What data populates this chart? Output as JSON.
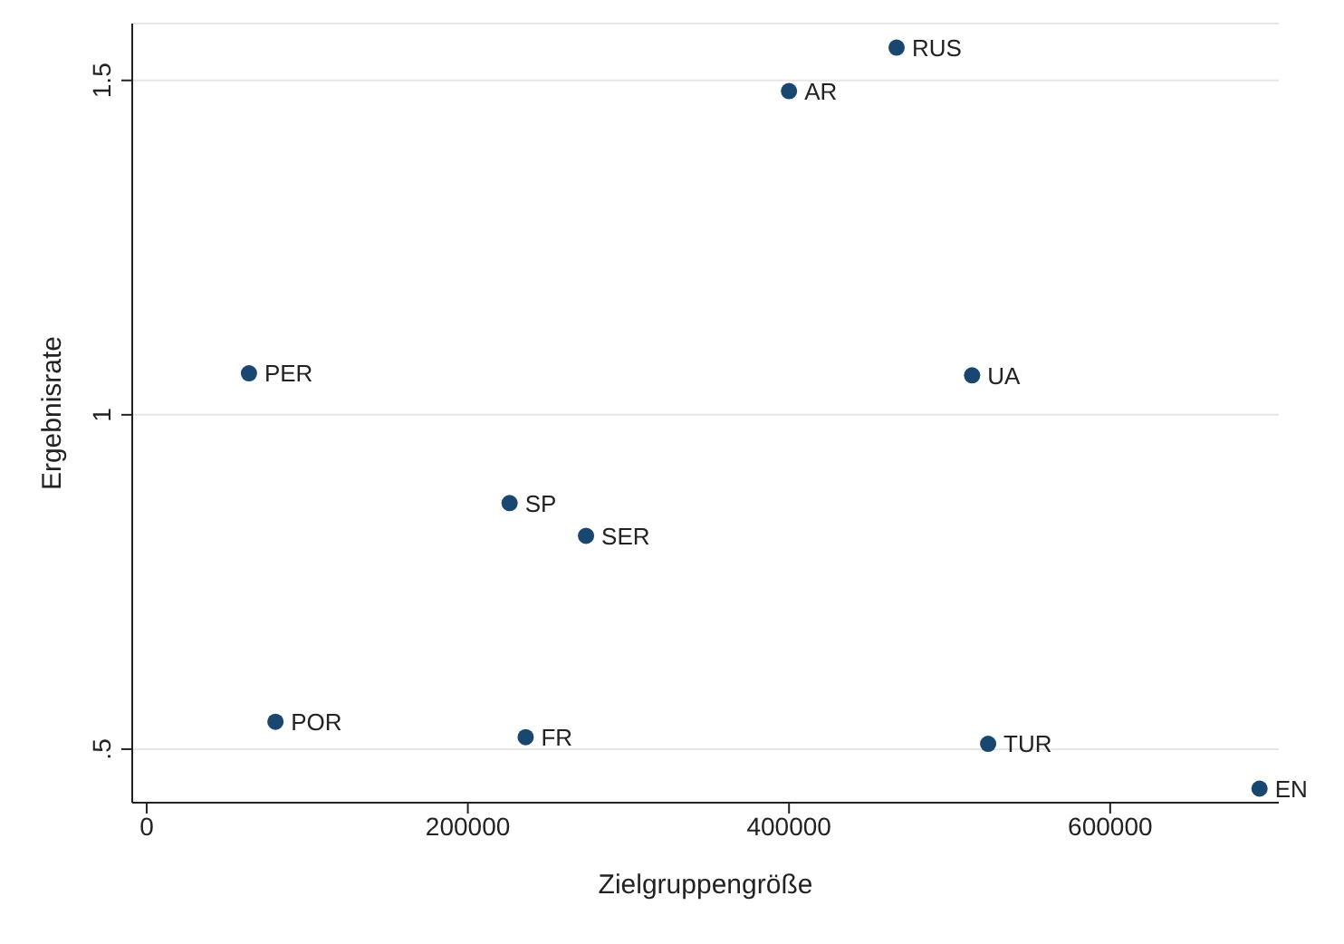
{
  "chart_data": {
    "type": "scatter",
    "xlabel": "Zielgruppengröße",
    "ylabel": "Ergebnisrate",
    "x": [
      467000,
      400000,
      63700,
      514000,
      226000,
      273600,
      80200,
      236000,
      524000,
      693000
    ],
    "values": [
      1.549,
      1.484,
      1.062,
      1.059,
      0.868,
      0.819,
      0.541,
      0.518,
      0.508,
      0.441
    ],
    "value_labels": [
      "RUS",
      "AR",
      "PER",
      "UA",
      "SP",
      "SER",
      "POR",
      "FR",
      "TUR",
      "EN"
    ],
    "color": "#1a476f",
    "marker": "circle",
    "grid": "y",
    "xlim": [
      -9000,
      705000
    ],
    "xticks": [
      0,
      200000,
      400000,
      600000
    ],
    "ylim": [
      0.42,
      1.585
    ],
    "yticks": [
      {
        "value": 0.5,
        "label": ".5"
      },
      1,
      1.5
    ]
  }
}
